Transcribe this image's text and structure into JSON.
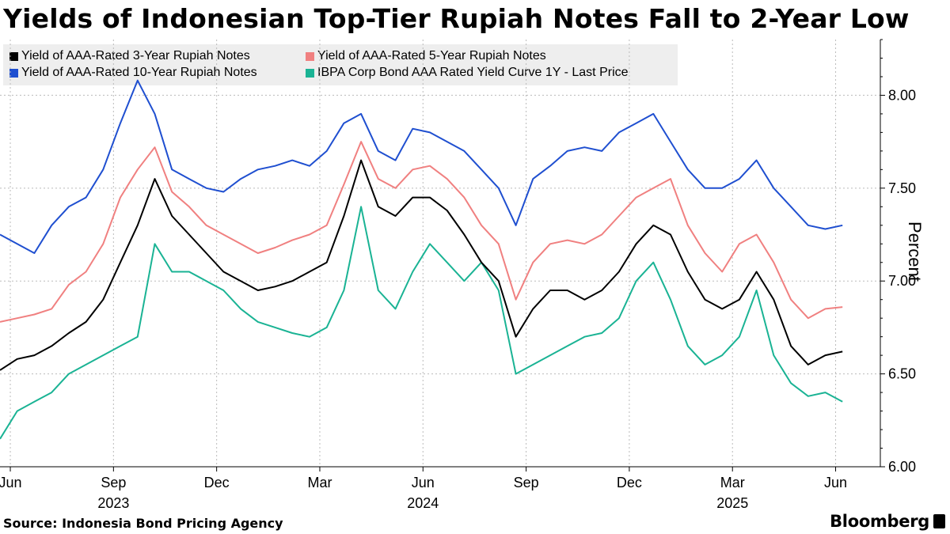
{
  "title": "Yields of Indonesian Top-Tier Rupiah Notes Fall to 2-Year Low",
  "source": "Source: Indonesia Bond Pricing Agency",
  "brand": "Bloomberg",
  "chart_data": {
    "type": "line",
    "ylabel": "Percent",
    "ylim": [
      6.0,
      8.3
    ],
    "yticks": [
      "8.00",
      "7.50",
      "7.00",
      "6.50",
      "6.00"
    ],
    "ytick_values": [
      8.0,
      7.5,
      7.0,
      6.5,
      6.0
    ],
    "xlim": [
      0,
      25.6
    ],
    "xticks": [
      {
        "label": "Jun",
        "x": 0.3
      },
      {
        "label": "Sep",
        "x": 3.3
      },
      {
        "label": "Dec",
        "x": 6.3
      },
      {
        "label": "Mar",
        "x": 9.3
      },
      {
        "label": "Jun",
        "x": 12.3
      },
      {
        "label": "Sep",
        "x": 15.3
      },
      {
        "label": "Dec",
        "x": 18.3
      },
      {
        "label": "Mar",
        "x": 21.3
      },
      {
        "label": "Jun",
        "x": 24.3
      }
    ],
    "year_labels": [
      {
        "label": "2023",
        "x": 3.3
      },
      {
        "label": "2024",
        "x": 12.3
      },
      {
        "label": "2025",
        "x": 21.3
      }
    ],
    "series": [
      {
        "name": "Yield of AAA-Rated 3-Year Rupiah Notes",
        "color": "#000000",
        "x": [
          0,
          0.5,
          1,
          1.5,
          2,
          2.5,
          3,
          3.5,
          4,
          4.5,
          5,
          5.5,
          6,
          6.5,
          7,
          7.5,
          8,
          8.5,
          9,
          9.5,
          10,
          10.5,
          11,
          11.5,
          12,
          12.5,
          13,
          13.5,
          14,
          14.5,
          15,
          15.5,
          16,
          16.5,
          17,
          17.5,
          18,
          18.5,
          19,
          19.5,
          20,
          20.5,
          21,
          21.5,
          22,
          22.5,
          23,
          23.5,
          24,
          24.5
        ],
        "values": [
          6.52,
          6.58,
          6.6,
          6.65,
          6.72,
          6.78,
          6.9,
          7.1,
          7.3,
          7.55,
          7.35,
          7.25,
          7.15,
          7.05,
          7.0,
          6.95,
          6.97,
          7.0,
          7.05,
          7.1,
          7.35,
          7.65,
          7.4,
          7.35,
          7.45,
          7.45,
          7.38,
          7.25,
          7.1,
          7.0,
          6.7,
          6.85,
          6.95,
          6.95,
          6.9,
          6.95,
          7.05,
          7.2,
          7.3,
          7.25,
          7.05,
          6.9,
          6.85,
          6.9,
          7.05,
          6.9,
          6.65,
          6.55,
          6.6,
          6.62
        ]
      },
      {
        "name": "Yield of AAA-Rated 5-Year Rupiah Notes",
        "color": "#f08080",
        "x": [
          0,
          0.5,
          1,
          1.5,
          2,
          2.5,
          3,
          3.5,
          4,
          4.5,
          5,
          5.5,
          6,
          6.5,
          7,
          7.5,
          8,
          8.5,
          9,
          9.5,
          10,
          10.5,
          11,
          11.5,
          12,
          12.5,
          13,
          13.5,
          14,
          14.5,
          15,
          15.5,
          16,
          16.5,
          17,
          17.5,
          18,
          18.5,
          19,
          19.5,
          20,
          20.5,
          21,
          21.5,
          22,
          22.5,
          23,
          23.5,
          24,
          24.5
        ],
        "values": [
          6.78,
          6.8,
          6.82,
          6.85,
          6.98,
          7.05,
          7.2,
          7.45,
          7.6,
          7.72,
          7.48,
          7.4,
          7.3,
          7.25,
          7.2,
          7.15,
          7.18,
          7.22,
          7.25,
          7.3,
          7.52,
          7.75,
          7.55,
          7.5,
          7.6,
          7.62,
          7.55,
          7.45,
          7.3,
          7.2,
          6.9,
          7.1,
          7.2,
          7.22,
          7.2,
          7.25,
          7.35,
          7.45,
          7.5,
          7.55,
          7.3,
          7.15,
          7.05,
          7.2,
          7.25,
          7.1,
          6.9,
          6.8,
          6.85,
          6.86
        ]
      },
      {
        "name": "Yield of AAA-Rated 10-Year Rupiah Notes",
        "color": "#1f4fd0",
        "x": [
          0,
          0.5,
          1,
          1.5,
          2,
          2.5,
          3,
          3.5,
          4,
          4.5,
          5,
          5.5,
          6,
          6.5,
          7,
          7.5,
          8,
          8.5,
          9,
          9.5,
          10,
          10.5,
          11,
          11.5,
          12,
          12.5,
          13,
          13.5,
          14,
          14.5,
          15,
          15.5,
          16,
          16.5,
          17,
          17.5,
          18,
          18.5,
          19,
          19.5,
          20,
          20.5,
          21,
          21.5,
          22,
          22.5,
          23,
          23.5,
          24,
          24.5
        ],
        "values": [
          7.25,
          7.2,
          7.15,
          7.3,
          7.4,
          7.45,
          7.6,
          7.85,
          8.08,
          7.9,
          7.6,
          7.55,
          7.5,
          7.48,
          7.55,
          7.6,
          7.62,
          7.65,
          7.62,
          7.7,
          7.85,
          7.9,
          7.7,
          7.65,
          7.82,
          7.8,
          7.75,
          7.7,
          7.6,
          7.5,
          7.3,
          7.55,
          7.62,
          7.7,
          7.72,
          7.7,
          7.8,
          7.85,
          7.9,
          7.75,
          7.6,
          7.5,
          7.5,
          7.55,
          7.65,
          7.5,
          7.4,
          7.3,
          7.28,
          7.3
        ]
      },
      {
        "name": "IBPA Corp Bond AAA Rated Yield Curve 1Y - Last Price",
        "color": "#1ab394",
        "x": [
          0,
          0.5,
          1,
          1.5,
          2,
          2.5,
          3,
          3.5,
          4,
          4.5,
          5,
          5.5,
          6,
          6.5,
          7,
          7.5,
          8,
          8.5,
          9,
          9.5,
          10,
          10.5,
          11,
          11.5,
          12,
          12.5,
          13,
          13.5,
          14,
          14.5,
          15,
          15.5,
          16,
          16.5,
          17,
          17.5,
          18,
          18.5,
          19,
          19.5,
          20,
          20.5,
          21,
          21.5,
          22,
          22.5,
          23,
          23.5,
          24,
          24.5
        ],
        "values": [
          6.15,
          6.3,
          6.35,
          6.4,
          6.5,
          6.55,
          6.6,
          6.65,
          6.7,
          7.2,
          7.05,
          7.05,
          7.0,
          6.95,
          6.85,
          6.78,
          6.75,
          6.72,
          6.7,
          6.75,
          6.95,
          7.4,
          6.95,
          6.85,
          7.05,
          7.2,
          7.1,
          7.0,
          7.1,
          6.95,
          6.5,
          6.55,
          6.6,
          6.65,
          6.7,
          6.72,
          6.8,
          7.0,
          7.1,
          6.9,
          6.65,
          6.55,
          6.6,
          6.7,
          6.95,
          6.6,
          6.45,
          6.38,
          6.4,
          6.35
        ]
      }
    ]
  }
}
